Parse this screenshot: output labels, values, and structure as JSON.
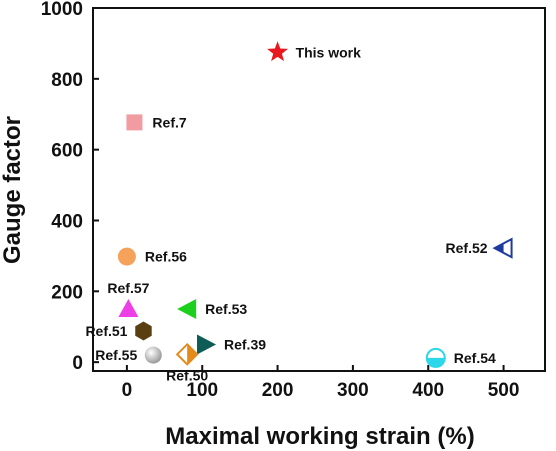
{
  "chart_data": {
    "type": "scatter",
    "title": "",
    "xlabel": "Maximal working strain (%)",
    "ylabel": "Gauge factor",
    "xlim": [
      -45,
      555
    ],
    "ylim": [
      -25,
      1000
    ],
    "xticks": [
      0,
      100,
      200,
      300,
      400,
      500
    ],
    "yticks": [
      0,
      200,
      400,
      600,
      800,
      1000
    ],
    "xtick_labels": [
      "0",
      "100",
      "200",
      "300",
      "400",
      "500"
    ],
    "ytick_labels": [
      "0",
      "200",
      "400",
      "600",
      "800",
      "1000"
    ],
    "grid": false,
    "legend": "none",
    "points": [
      {
        "label": "This work",
        "x": 200,
        "y": 875,
        "marker": "star",
        "color": "#e8191e",
        "label_side": "right"
      },
      {
        "label": "Ref.7",
        "x": 10,
        "y": 677,
        "marker": "square",
        "color": "#f19ca1",
        "label_side": "right"
      },
      {
        "label": "Ref.56",
        "x": 0,
        "y": 298,
        "marker": "circle",
        "color": "#f5a25b",
        "label_side": "right"
      },
      {
        "label": "Ref.52",
        "x": 500,
        "y": 322,
        "marker": "triangle-left-half",
        "color": "#1f3a9f",
        "label_side": "left"
      },
      {
        "label": "Ref.57",
        "x": 2,
        "y": 150,
        "marker": "triangle-up",
        "color": "#ee3ee6",
        "label_side": "top"
      },
      {
        "label": "Ref.53",
        "x": 80,
        "y": 150,
        "marker": "triangle-left",
        "color": "#1ed01e",
        "label_side": "right"
      },
      {
        "label": "Ref.51",
        "x": 22,
        "y": 88,
        "marker": "hexagon",
        "color": "#5a3f10",
        "label_side": "left"
      },
      {
        "label": "Ref.39",
        "x": 105,
        "y": 50,
        "marker": "triangle-right",
        "color": "#0e5c56",
        "label_side": "right"
      },
      {
        "label": "Ref.55",
        "x": 35,
        "y": 20,
        "marker": "sphere",
        "color": "#b5b5b5",
        "label_side": "left"
      },
      {
        "label": "Ref.50",
        "x": 80,
        "y": 22,
        "marker": "diamond-half",
        "color": "#e38a1a",
        "label_side": "bottom"
      },
      {
        "label": "Ref.54",
        "x": 410,
        "y": 12,
        "marker": "circle-half",
        "color": "#2bd7e8",
        "label_side": "right"
      }
    ]
  }
}
